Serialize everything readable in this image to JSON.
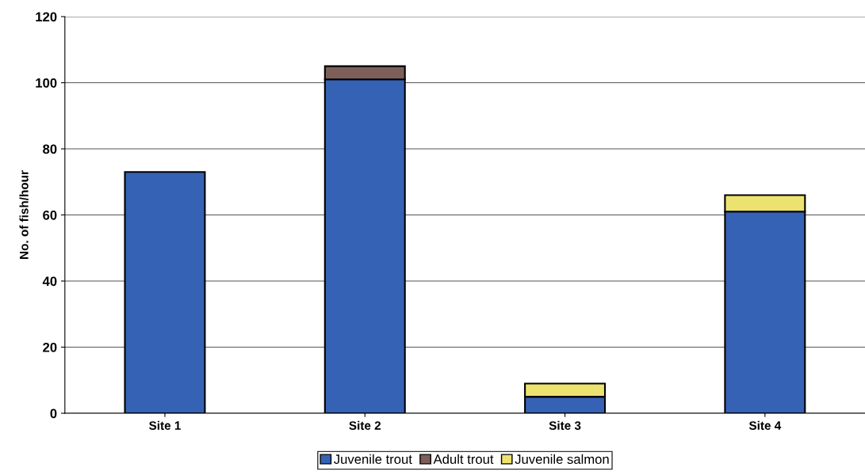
{
  "chart_data": {
    "type": "bar",
    "stacked": true,
    "ylabel": "No. of fish/hour",
    "categories": [
      "Site 1",
      "Site 2",
      "Site 3",
      "Site 4"
    ],
    "series": [
      {
        "name": "Juvenile trout",
        "color": "#3562b4",
        "values": [
          73,
          101,
          5,
          61
        ]
      },
      {
        "name": "Adult trout",
        "color": "#7d5f5a",
        "values": [
          0,
          4,
          0,
          0
        ]
      },
      {
        "name": "Juvenile salmon",
        "color": "#ece270",
        "values": [
          0,
          0,
          4,
          5
        ]
      }
    ],
    "ylim": [
      0,
      120
    ],
    "yticks": [
      0,
      20,
      40,
      60,
      80,
      100,
      120
    ],
    "grid": "y",
    "legend": "bottom"
  }
}
